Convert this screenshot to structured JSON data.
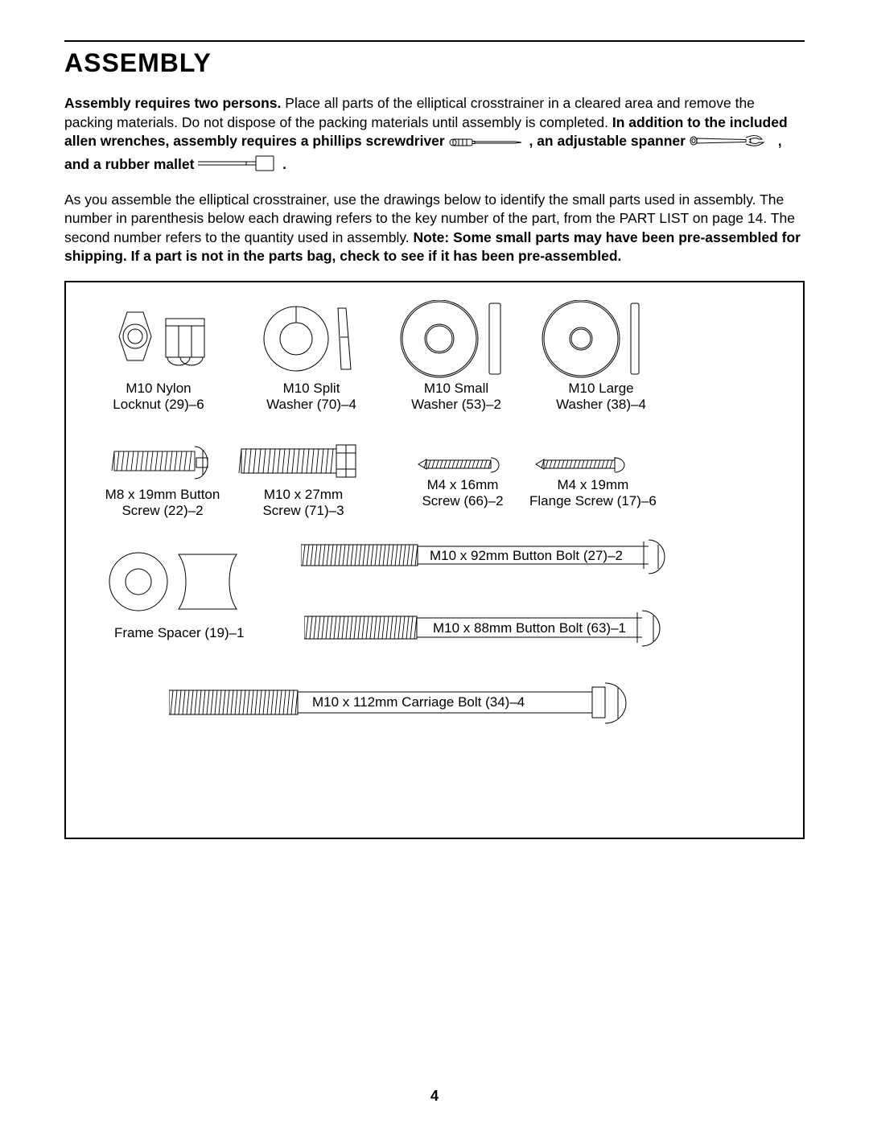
{
  "title": "ASSEMBLY",
  "para1": {
    "lead_bold": "Assembly requires two persons.",
    "t1": " Place all parts of the elliptical crosstrainer in a cleared area and remove the packing materials. Do not dispose of the packing materials until assembly is completed. ",
    "bold2": "In addition to the included allen wrenches, assembly requires a phillips screwdriver ",
    "after_screwdriver": " , an adjustable spanner ",
    "after_spanner": " , and a rubber mallet ",
    "period": " ."
  },
  "para2": {
    "t1": "As you assemble the elliptical crosstrainer, use the drawings below to identify the small parts used in assembly. The number in parenthesis below each drawing refers to the key number of the part, from the PART LIST on page 14. The second number refers to the quantity used in assembly. ",
    "bold": "Note: Some small parts may have been pre-assembled for shipping. If a part is not in the parts bag, check to see if it has been pre-assembled."
  },
  "parts": {
    "locknut": {
      "l1": "M10 Nylon",
      "l2": "Locknut (29)–6"
    },
    "split": {
      "l1": "M10 Split",
      "l2": "Washer (70)–4"
    },
    "smallw": {
      "l1": "M10 Small",
      "l2": "Washer (53)–2"
    },
    "largew": {
      "l1": "M10 Large",
      "l2": "Washer (38)–4"
    },
    "btn8": {
      "l1": "M8 x 19mm Button",
      "l2": "Screw (22)–2"
    },
    "scr27": {
      "l1": "M10 x 27mm",
      "l2": "Screw (71)–3"
    },
    "m4_16": {
      "l1": "M4 x 16mm",
      "l2": "Screw (66)–2"
    },
    "m4_19": {
      "l1": "M4 x 19mm",
      "l2": "Flange Screw (17)–6"
    },
    "spacer": {
      "l1": "Frame Spacer (19)–1"
    },
    "bolt92": {
      "l1": "M10 x 92mm Button Bolt (27)–2"
    },
    "bolt88": {
      "l1": "M10 x 88mm Button Bolt (63)–1"
    },
    "bolt112": {
      "l1": "M10 x 112mm Carriage Bolt (34)–4"
    }
  },
  "page_number": "4"
}
